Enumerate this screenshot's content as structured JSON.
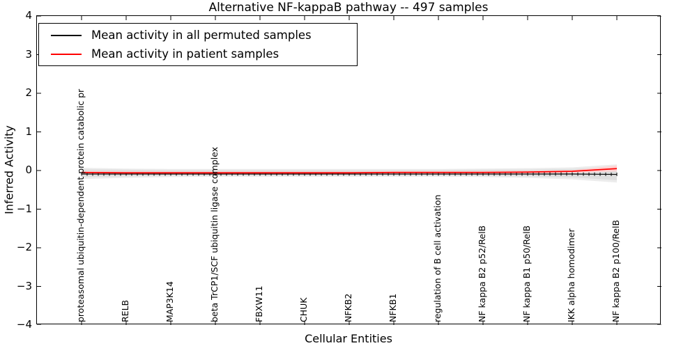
{
  "chart_data": {
    "type": "line",
    "title": "Alternative NF-kappaB pathway -- 497 samples",
    "xlabel": "Cellular Entities",
    "ylabel": "Inferred Activity",
    "ylim": [
      -4,
      4
    ],
    "ytick_labels": [
      "4",
      "3",
      "2",
      "1",
      "0",
      "−1",
      "−2",
      "−3",
      "−4"
    ],
    "grid": false,
    "legend_position": "upper-left",
    "categories": [
      "proteasomal ubiquitin-dependent protein catabolic pr",
      "RELB",
      "MAP3K14",
      "beta TrCP1/SCF ubiquitin ligase complex",
      "FBXW11",
      "CHUK",
      "NFKB2",
      "NFKB1",
      "regulation of B cell activation",
      "NF kappa B2 p52/RelB",
      "NF kappa B1 p50/RelB",
      "IKK alpha homodimer",
      "NF kappa B2 p100/RelB"
    ],
    "series": [
      {
        "name": "Mean activity in all permuted samples",
        "color": "#000000",
        "values": [
          -0.09,
          -0.09,
          -0.09,
          -0.09,
          -0.09,
          -0.09,
          -0.09,
          -0.09,
          -0.09,
          -0.09,
          -0.09,
          -0.09,
          -0.1
        ]
      },
      {
        "name": "Mean activity in patient samples",
        "color": "#ff0000",
        "values": [
          -0.05,
          -0.06,
          -0.06,
          -0.06,
          -0.06,
          -0.06,
          -0.06,
          -0.05,
          -0.05,
          -0.05,
          -0.04,
          -0.02,
          0.05
        ]
      }
    ],
    "bands": [
      {
        "name": "permuted-range-outer",
        "color": "#ececec",
        "upper": [
          0.07,
          0.05,
          0.04,
          0.04,
          0.04,
          0.04,
          0.04,
          0.04,
          0.04,
          0.05,
          0.06,
          0.08,
          0.16
        ],
        "lower": [
          -0.22,
          -0.19,
          -0.17,
          -0.16,
          -0.16,
          -0.16,
          -0.16,
          -0.16,
          -0.16,
          -0.17,
          -0.19,
          -0.23,
          -0.31
        ]
      },
      {
        "name": "permuted-range-inner",
        "color": "#dedede",
        "upper": [
          0.03,
          0.02,
          0.01,
          0.01,
          0.01,
          0.01,
          0.01,
          0.01,
          0.01,
          0.02,
          0.02,
          0.04,
          0.1
        ],
        "lower": [
          -0.17,
          -0.15,
          -0.13,
          -0.13,
          -0.13,
          -0.13,
          -0.13,
          -0.13,
          -0.13,
          -0.14,
          -0.15,
          -0.18,
          -0.25
        ]
      },
      {
        "name": "patient-range",
        "color": "#ffd2d2",
        "upper": [
          -0.02,
          -0.03,
          -0.03,
          -0.03,
          -0.03,
          -0.03,
          -0.03,
          -0.02,
          -0.02,
          -0.02,
          -0.01,
          0.01,
          0.13
        ],
        "lower": [
          -0.09,
          -0.09,
          -0.09,
          -0.09,
          -0.09,
          -0.09,
          -0.09,
          -0.09,
          -0.09,
          -0.08,
          -0.08,
          -0.06,
          -0.02
        ]
      }
    ]
  }
}
